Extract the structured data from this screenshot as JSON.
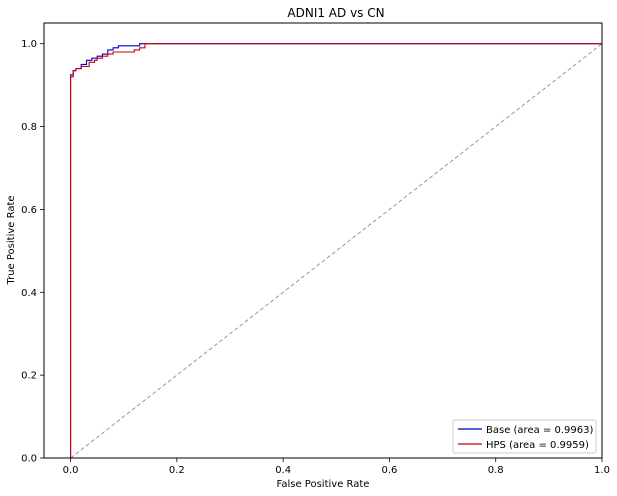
{
  "chart_data": {
    "type": "line",
    "title": "ADNI1 AD vs CN",
    "xlabel": "False Positive Rate",
    "ylabel": "True Positive Rate",
    "xlim": [
      -0.05,
      1.0
    ],
    "ylim": [
      0.0,
      1.05
    ],
    "xticks": [
      0.0,
      0.2,
      0.4,
      0.6,
      0.8,
      1.0
    ],
    "yticks": [
      0.0,
      0.2,
      0.4,
      0.6,
      0.8,
      1.0
    ],
    "xtick_labels": [
      "0.0",
      "0.2",
      "0.4",
      "0.6",
      "0.8",
      "1.0"
    ],
    "ytick_labels": [
      "0.0",
      "0.2",
      "0.4",
      "0.6",
      "0.8",
      "1.0"
    ],
    "grid": false,
    "legend_position": "lower-right",
    "series": [
      {
        "name": "Base (area = 0.9963)",
        "color": "#0000cc",
        "style": "step",
        "x": [
          0.0,
          0.0,
          0.005,
          0.005,
          0.01,
          0.01,
          0.02,
          0.02,
          0.03,
          0.03,
          0.04,
          0.04,
          0.05,
          0.05,
          0.06,
          0.06,
          0.07,
          0.07,
          0.08,
          0.08,
          0.09,
          0.09,
          0.13,
          0.13,
          1.0
        ],
        "y": [
          0.0,
          0.925,
          0.925,
          0.935,
          0.935,
          0.94,
          0.94,
          0.95,
          0.95,
          0.96,
          0.96,
          0.965,
          0.965,
          0.97,
          0.97,
          0.975,
          0.975,
          0.985,
          0.985,
          0.99,
          0.99,
          0.995,
          0.995,
          1.0,
          1.0
        ]
      },
      {
        "name": "HPS (area = 0.9959)",
        "color": "#cc0000",
        "style": "step",
        "x": [
          0.0,
          0.0,
          0.005,
          0.005,
          0.01,
          0.01,
          0.02,
          0.02,
          0.035,
          0.035,
          0.045,
          0.045,
          0.05,
          0.05,
          0.06,
          0.06,
          0.07,
          0.07,
          0.08,
          0.08,
          0.12,
          0.12,
          0.13,
          0.13,
          0.14,
          0.14,
          1.0
        ],
        "y": [
          0.0,
          0.92,
          0.92,
          0.935,
          0.935,
          0.94,
          0.94,
          0.945,
          0.945,
          0.955,
          0.955,
          0.96,
          0.96,
          0.965,
          0.965,
          0.97,
          0.97,
          0.975,
          0.975,
          0.98,
          0.98,
          0.985,
          0.985,
          0.99,
          0.99,
          1.0,
          1.0
        ]
      },
      {
        "name": "",
        "color": "#808080",
        "style": "dashed",
        "x": [
          0.0,
          1.0
        ],
        "y": [
          0.0,
          1.0
        ]
      }
    ]
  }
}
